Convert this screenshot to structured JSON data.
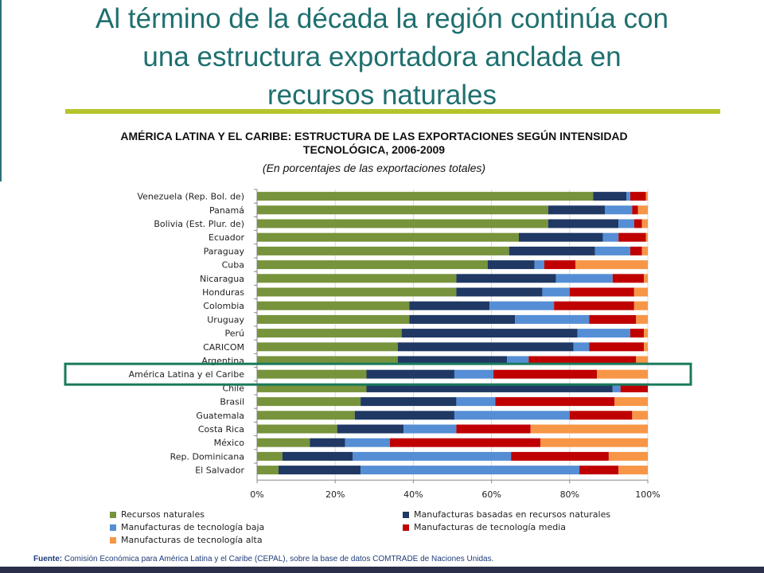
{
  "slide": {
    "title_line1": "Al término de la década la región continúa con",
    "title_line2": "una estructura exportadora anclada en",
    "title_line3": "recursos naturales"
  },
  "source": {
    "label": "Fuente:",
    "text": "Comisión Económica para América Latina y el Caribe (CEPAL), sobre la base de datos COMTRADE de Naciones Unidas."
  },
  "colors": {
    "title": "#1f6f6f",
    "accent_bar": "#b5c42b",
    "highlight_box": "#1a7a5c",
    "bottom_bar": "#2b2f4a"
  },
  "chart_data": {
    "type": "bar",
    "orientation": "horizontal",
    "stacked": true,
    "title_line1": "AMÉRICA LATINA Y EL CARIBE: ESTRUCTURA DE LAS EXPORTACIONES SEGÚN INTENSIDAD",
    "title_line2": "TECNOLÓGICA, 2006-2009",
    "subtitle": "(En porcentajes de las exportaciones totales)",
    "xlim": [
      0,
      100
    ],
    "xticks": [
      "0%",
      "20%",
      "40%",
      "60%",
      "80%",
      "100%"
    ],
    "highlighted_category": "América Latina y el Caribe",
    "legend_position": "bottom",
    "categories": [
      "Venezuela (Rep. Bol. de)",
      "Panamá",
      "Bolivia (Est. Plur. de)",
      "Ecuador",
      "Paraguay",
      "Cuba",
      "Nicaragua",
      "Honduras",
      "Colombia",
      "Uruguay",
      "Perú",
      "CARICOM",
      "Argentina",
      "América Latina y el Caribe",
      "Chile",
      "Brasil",
      "Guatemala",
      "Costa Rica",
      "México",
      "Rep. Dominicana",
      "El Salvador"
    ],
    "series": [
      {
        "name": "Recursos naturales",
        "color": "#77933c",
        "values": [
          86,
          74.5,
          74.5,
          67,
          64.5,
          59,
          51,
          51,
          39,
          39,
          37,
          36,
          36,
          28,
          28,
          26.5,
          25,
          20.5,
          13.5,
          6.5,
          5.5
        ]
      },
      {
        "name": "Manufacturas basadas en recursos naturales",
        "color": "#1f3864",
        "values": [
          8.5,
          14.5,
          18,
          21.5,
          22,
          12,
          25.5,
          22,
          20.5,
          27,
          45,
          45,
          28,
          22.5,
          63,
          24.5,
          25.5,
          17,
          9,
          18,
          21
        ]
      },
      {
        "name": "Manufacturas de  tecnología baja",
        "color": "#558ed5",
        "values": [
          1,
          7,
          4,
          4,
          9,
          2.5,
          14.5,
          7,
          16.5,
          19,
          13.5,
          4,
          5.5,
          10,
          2,
          10,
          29.5,
          13.5,
          11.5,
          40.5,
          56
        ]
      },
      {
        "name": "Manufacturas de  tecnología media",
        "color": "#c00000",
        "values": [
          4,
          1.5,
          2,
          7,
          3,
          8,
          8,
          16.5,
          20.5,
          12,
          3.5,
          14,
          27.5,
          26.5,
          7,
          30.5,
          16,
          19,
          38.5,
          25,
          10
        ]
      },
      {
        "name": "Manufacturas de tecnología alta",
        "color": "#f79646",
        "values": [
          0.5,
          2.5,
          1.5,
          0.5,
          1.5,
          18.5,
          1,
          3.5,
          3.5,
          3,
          1,
          1,
          3,
          13,
          0,
          8.5,
          4,
          30,
          27.5,
          10,
          7.5
        ]
      }
    ]
  }
}
